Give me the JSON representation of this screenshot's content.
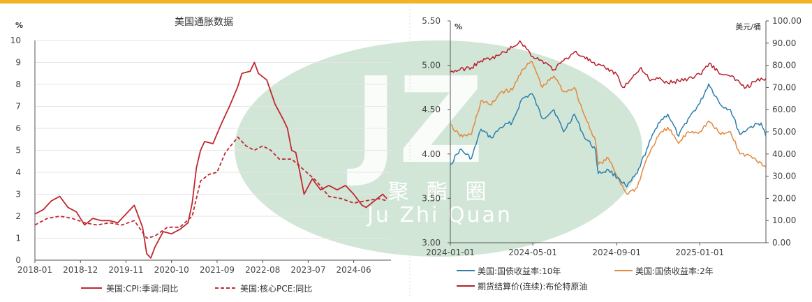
{
  "colors": {
    "top_bar": "#f0b323",
    "cpi": "#c0282f",
    "pce": "#c0282f",
    "ust10y": "#2c7fb0",
    "ust2y": "#e3883d",
    "brent": "#b81e2c",
    "watermark_ellipse": "#c9e2cf",
    "watermark_text": "#ffffff",
    "grid": "#e6e6e6",
    "axis": "#555555"
  },
  "watermark": {
    "logo_text": "JZ",
    "line1": "聚 酯 圈",
    "line2": "Ju Zhi Quan"
  },
  "chart_data": [
    {
      "type": "line",
      "title": "美国通胀数据",
      "ylabel": "%",
      "ylim": [
        0,
        10
      ],
      "yticks": [
        "0",
        "1",
        "2",
        "3",
        "4",
        "5",
        "6",
        "7",
        "8",
        "9",
        "10"
      ],
      "xticks": [
        "2018-01",
        "2018-12",
        "2019-11",
        "2020-10",
        "2021-09",
        "2022-08",
        "2023-07",
        "2024-06"
      ],
      "xrange": [
        "2018-01",
        "2025-03"
      ],
      "grid": true,
      "legend_position": "bottom",
      "series": [
        {
          "name": "美国:CPI:季调:同比",
          "style": "solid",
          "points": [
            [
              "2018-01",
              2.1
            ],
            [
              "2018-03",
              2.3
            ],
            [
              "2018-05",
              2.7
            ],
            [
              "2018-07",
              2.9
            ],
            [
              "2018-09",
              2.4
            ],
            [
              "2018-11",
              2.2
            ],
            [
              "2019-01",
              1.6
            ],
            [
              "2019-03",
              1.9
            ],
            [
              "2019-05",
              1.8
            ],
            [
              "2019-07",
              1.8
            ],
            [
              "2019-09",
              1.7
            ],
            [
              "2019-11",
              2.1
            ],
            [
              "2020-01",
              2.5
            ],
            [
              "2020-03",
              1.5
            ],
            [
              "2020-04",
              0.3
            ],
            [
              "2020-05",
              0.1
            ],
            [
              "2020-06",
              0.6
            ],
            [
              "2020-08",
              1.3
            ],
            [
              "2020-10",
              1.2
            ],
            [
              "2020-12",
              1.4
            ],
            [
              "2021-02",
              1.7
            ],
            [
              "2021-03",
              2.6
            ],
            [
              "2021-04",
              4.2
            ],
            [
              "2021-05",
              5.0
            ],
            [
              "2021-06",
              5.4
            ],
            [
              "2021-08",
              5.3
            ],
            [
              "2021-10",
              6.2
            ],
            [
              "2021-12",
              7.0
            ],
            [
              "2022-02",
              7.9
            ],
            [
              "2022-03",
              8.5
            ],
            [
              "2022-05",
              8.6
            ],
            [
              "2022-06",
              9.0
            ],
            [
              "2022-07",
              8.5
            ],
            [
              "2022-09",
              8.2
            ],
            [
              "2022-11",
              7.1
            ],
            [
              "2023-01",
              6.4
            ],
            [
              "2023-02",
              6.0
            ],
            [
              "2023-03",
              5.0
            ],
            [
              "2023-04",
              4.9
            ],
            [
              "2023-05",
              4.0
            ],
            [
              "2023-06",
              3.0
            ],
            [
              "2023-08",
              3.7
            ],
            [
              "2023-10",
              3.2
            ],
            [
              "2023-12",
              3.4
            ],
            [
              "2024-02",
              3.2
            ],
            [
              "2024-04",
              3.4
            ],
            [
              "2024-06",
              3.0
            ],
            [
              "2024-08",
              2.5
            ],
            [
              "2024-09",
              2.4
            ],
            [
              "2024-11",
              2.7
            ],
            [
              "2025-01",
              3.0
            ],
            [
              "2025-02",
              2.8
            ]
          ]
        },
        {
          "name": "美国:核心PCE:同比",
          "style": "dashed",
          "points": [
            [
              "2018-01",
              1.6
            ],
            [
              "2018-04",
              1.9
            ],
            [
              "2018-07",
              2.0
            ],
            [
              "2018-10",
              1.9
            ],
            [
              "2019-01",
              1.7
            ],
            [
              "2019-04",
              1.6
            ],
            [
              "2019-07",
              1.7
            ],
            [
              "2019-10",
              1.6
            ],
            [
              "2020-01",
              1.8
            ],
            [
              "2020-04",
              1.0
            ],
            [
              "2020-06",
              1.1
            ],
            [
              "2020-09",
              1.5
            ],
            [
              "2020-12",
              1.5
            ],
            [
              "2021-03",
              2.0
            ],
            [
              "2021-05",
              3.6
            ],
            [
              "2021-07",
              3.9
            ],
            [
              "2021-09",
              4.0
            ],
            [
              "2021-11",
              4.9
            ],
            [
              "2022-02",
              5.6
            ],
            [
              "2022-04",
              5.2
            ],
            [
              "2022-06",
              5.0
            ],
            [
              "2022-08",
              5.2
            ],
            [
              "2022-10",
              5.0
            ],
            [
              "2022-12",
              4.6
            ],
            [
              "2023-03",
              4.6
            ],
            [
              "2023-06",
              4.1
            ],
            [
              "2023-09",
              3.6
            ],
            [
              "2023-12",
              2.9
            ],
            [
              "2024-03",
              2.8
            ],
            [
              "2024-06",
              2.6
            ],
            [
              "2024-09",
              2.7
            ],
            [
              "2024-12",
              2.8
            ],
            [
              "2025-02",
              2.7
            ]
          ]
        }
      ]
    },
    {
      "type": "line",
      "ylabel_left": "%",
      "ylabel_right": "美元/桶",
      "ylim_left": [
        3.0,
        5.5
      ],
      "ylim_right": [
        0,
        100
      ],
      "yticks_left": [
        "3.00",
        "3.50",
        "4.00",
        "4.50",
        "5.00",
        "5.50"
      ],
      "yticks_right": [
        "0.00",
        "10.00",
        "20.00",
        "30.00",
        "40.00",
        "50.00",
        "60.00",
        "70.00",
        "80.00",
        "90.00",
        "100.00"
      ],
      "xticks": [
        "2024-01-01",
        "2024-05-01",
        "2024-09-01",
        "2025-01-01"
      ],
      "xrange": [
        "2024-01-01",
        "2025-04-08"
      ],
      "grid": false,
      "legend_position": "bottom",
      "series": [
        {
          "name": "美国:国债收益率:10年",
          "axis": "left",
          "points": [
            [
              "2024-01-01",
              3.88
            ],
            [
              "2024-01-15",
              4.05
            ],
            [
              "2024-02-01",
              3.95
            ],
            [
              "2024-02-15",
              4.28
            ],
            [
              "2024-03-01",
              4.18
            ],
            [
              "2024-03-15",
              4.3
            ],
            [
              "2024-04-01",
              4.36
            ],
            [
              "2024-04-15",
              4.62
            ],
            [
              "2024-04-30",
              4.68
            ],
            [
              "2024-05-15",
              4.4
            ],
            [
              "2024-06-01",
              4.5
            ],
            [
              "2024-06-15",
              4.25
            ],
            [
              "2024-07-01",
              4.45
            ],
            [
              "2024-07-15",
              4.2
            ],
            [
              "2024-08-01",
              4.05
            ],
            [
              "2024-08-05",
              3.78
            ],
            [
              "2024-08-20",
              3.82
            ],
            [
              "2024-09-05",
              3.72
            ],
            [
              "2024-09-16",
              3.63
            ],
            [
              "2024-10-01",
              3.78
            ],
            [
              "2024-10-15",
              4.05
            ],
            [
              "2024-11-01",
              4.35
            ],
            [
              "2024-11-15",
              4.45
            ],
            [
              "2024-12-01",
              4.2
            ],
            [
              "2024-12-15",
              4.4
            ],
            [
              "2025-01-01",
              4.57
            ],
            [
              "2025-01-14",
              4.79
            ],
            [
              "2025-02-01",
              4.55
            ],
            [
              "2025-02-15",
              4.5
            ],
            [
              "2025-03-01",
              4.22
            ],
            [
              "2025-03-15",
              4.3
            ],
            [
              "2025-04-01",
              4.35
            ],
            [
              "2025-04-08",
              4.2
            ]
          ]
        },
        {
          "name": "美国:国债收益率:2年",
          "axis": "left",
          "points": [
            [
              "2024-01-01",
              4.33
            ],
            [
              "2024-01-15",
              4.2
            ],
            [
              "2024-02-01",
              4.22
            ],
            [
              "2024-02-15",
              4.6
            ],
            [
              "2024-03-01",
              4.55
            ],
            [
              "2024-03-15",
              4.7
            ],
            [
              "2024-04-01",
              4.72
            ],
            [
              "2024-04-15",
              4.95
            ],
            [
              "2024-04-30",
              5.04
            ],
            [
              "2024-05-15",
              4.75
            ],
            [
              "2024-06-01",
              4.88
            ],
            [
              "2024-06-15",
              4.7
            ],
            [
              "2024-07-01",
              4.75
            ],
            [
              "2024-07-15",
              4.45
            ],
            [
              "2024-08-01",
              4.15
            ],
            [
              "2024-08-05",
              3.88
            ],
            [
              "2024-08-20",
              3.95
            ],
            [
              "2024-09-05",
              3.7
            ],
            [
              "2024-09-16",
              3.55
            ],
            [
              "2024-10-01",
              3.62
            ],
            [
              "2024-10-15",
              3.95
            ],
            [
              "2024-11-01",
              4.2
            ],
            [
              "2024-11-15",
              4.3
            ],
            [
              "2024-12-01",
              4.12
            ],
            [
              "2024-12-15",
              4.25
            ],
            [
              "2025-01-01",
              4.25
            ],
            [
              "2025-01-14",
              4.37
            ],
            [
              "2025-02-01",
              4.22
            ],
            [
              "2025-02-15",
              4.25
            ],
            [
              "2025-03-01",
              4.0
            ],
            [
              "2025-03-15",
              3.98
            ],
            [
              "2025-04-01",
              3.9
            ],
            [
              "2025-04-08",
              3.85
            ]
          ]
        },
        {
          "name": "期货结算价(连续):布伦特原油",
          "axis": "right",
          "points": [
            [
              "2024-01-01",
              77
            ],
            [
              "2024-01-15",
              78
            ],
            [
              "2024-02-01",
              79
            ],
            [
              "2024-02-15",
              82
            ],
            [
              "2024-03-01",
              83
            ],
            [
              "2024-03-15",
              85
            ],
            [
              "2024-04-01",
              88
            ],
            [
              "2024-04-12",
              91
            ],
            [
              "2024-05-01",
              84
            ],
            [
              "2024-05-15",
              82
            ],
            [
              "2024-06-01",
              78
            ],
            [
              "2024-06-15",
              82
            ],
            [
              "2024-07-01",
              86
            ],
            [
              "2024-07-15",
              84
            ],
            [
              "2024-08-01",
              80
            ],
            [
              "2024-08-15",
              79
            ],
            [
              "2024-09-01",
              76
            ],
            [
              "2024-09-10",
              70
            ],
            [
              "2024-09-20",
              73
            ],
            [
              "2024-10-07",
              79
            ],
            [
              "2024-10-20",
              73
            ],
            [
              "2024-11-01",
              74
            ],
            [
              "2024-11-15",
              72
            ],
            [
              "2024-12-01",
              73
            ],
            [
              "2024-12-15",
              74
            ],
            [
              "2025-01-01",
              76
            ],
            [
              "2025-01-15",
              81
            ],
            [
              "2025-02-01",
              76
            ],
            [
              "2025-02-15",
              75
            ],
            [
              "2025-03-01",
              72
            ],
            [
              "2025-03-10",
              70
            ],
            [
              "2025-03-25",
              73
            ],
            [
              "2025-04-08",
              74
            ]
          ]
        }
      ]
    }
  ]
}
